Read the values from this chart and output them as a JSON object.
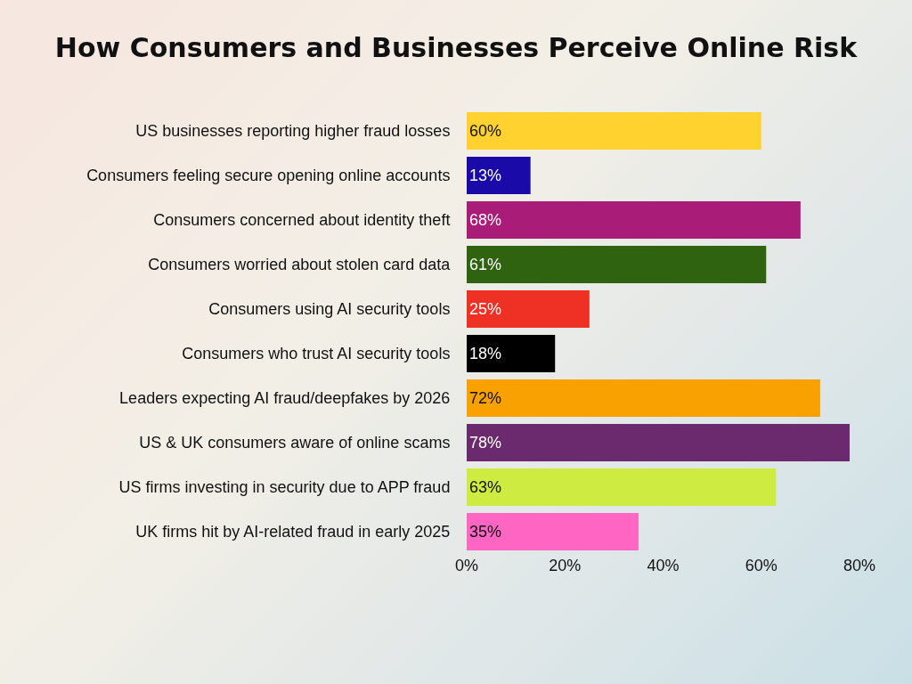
{
  "chart_data": {
    "type": "bar",
    "orientation": "horizontal",
    "title": "How Consumers and Businesses Perceive Online Risk",
    "categories": [
      "US businesses reporting higher fraud losses",
      "Consumers feeling secure opening online accounts",
      "Consumers concerned about identity theft",
      "Consumers worried about stolen card data",
      "Consumers using AI security tools",
      "Consumers who trust AI security tools",
      "Leaders expecting AI fraud/deepfakes by 2026",
      "US & UK consumers aware of online scams",
      "US firms investing in security due to APP fraud",
      "UK firms hit by AI-related fraud in early 2025"
    ],
    "values": [
      60,
      13,
      68,
      61,
      25,
      18,
      72,
      78,
      63,
      35
    ],
    "value_labels": [
      "60%",
      "13%",
      "68%",
      "61%",
      "25%",
      "18%",
      "72%",
      "78%",
      "63%",
      "35%"
    ],
    "colors": [
      "#ffd230",
      "#1a0aa8",
      "#a91c78",
      "#2f6310",
      "#ee3124",
      "#000000",
      "#f9a100",
      "#6c2a6e",
      "#cdeb41",
      "#ff66c4"
    ],
    "xlim": [
      0,
      80
    ],
    "xticks": [
      {
        "value": 0,
        "label": "0%"
      },
      {
        "value": 20,
        "label": "20%"
      },
      {
        "value": 40,
        "label": "40%"
      },
      {
        "value": 60,
        "label": "60%"
      },
      {
        "value": 80,
        "label": "80%"
      }
    ],
    "grid": false
  }
}
